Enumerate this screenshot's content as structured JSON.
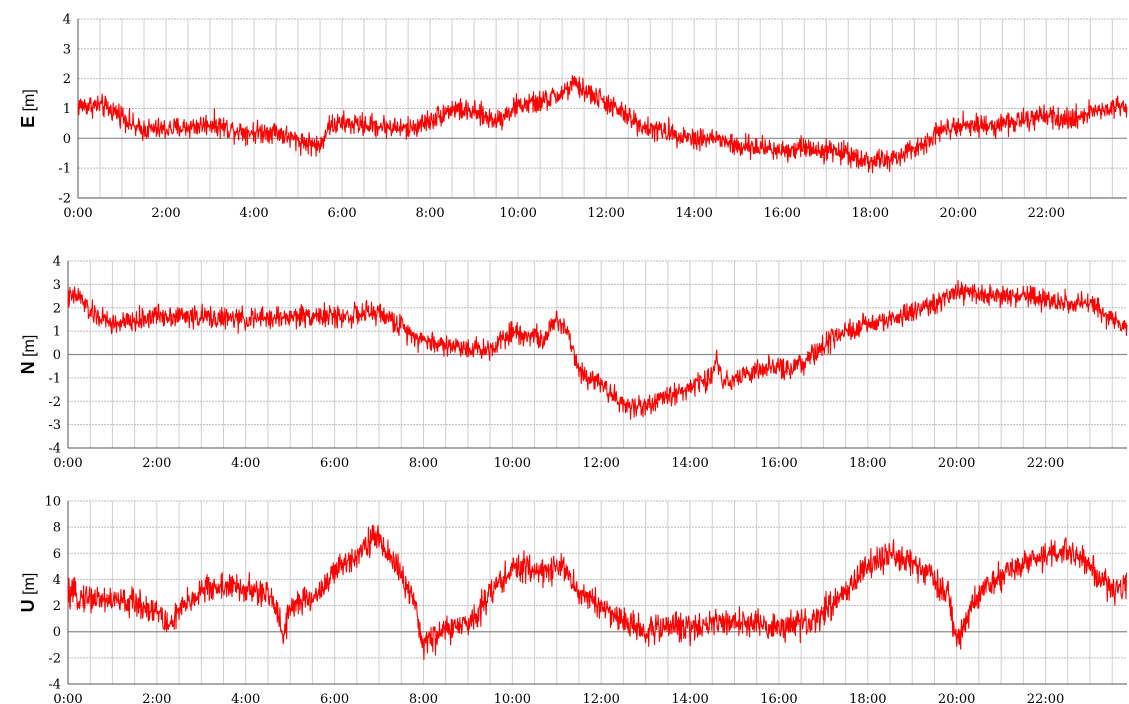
{
  "chart_data": [
    {
      "type": "line",
      "ylabel_main": "E",
      "ylabel_unit": "[m]",
      "xlim": [
        "0:00",
        "23:50"
      ],
      "ylim": [
        -2,
        4
      ],
      "x_ticks": [
        "0:00",
        "2:00",
        "4:00",
        "6:00",
        "8:00",
        "10:00",
        "12:00",
        "14:00",
        "16:00",
        "18:00",
        "20:00",
        "22:00"
      ],
      "y_ticks": [
        -2,
        -1,
        0,
        1,
        2,
        3,
        4
      ],
      "grid": true,
      "series": [
        {
          "color": "#ff0000",
          "noise": 0.55,
          "x": [
            "0:00",
            "0:30",
            "1:00",
            "1:20",
            "2:00",
            "2:40",
            "3:00",
            "3:30",
            "4:00",
            "4:30",
            "4:50",
            "5:20",
            "5:30",
            "5:40",
            "6:00",
            "7:00",
            "7:30",
            "8:00",
            "8:30",
            "9:00",
            "9:30",
            "10:00",
            "10:30",
            "11:00",
            "11:15",
            "11:30",
            "12:00",
            "12:30",
            "13:00",
            "13:30",
            "14:00",
            "14:30",
            "15:00",
            "15:30",
            "16:00",
            "16:30",
            "17:00",
            "17:30",
            "18:00",
            "18:30",
            "19:00",
            "19:30",
            "20:00",
            "20:30",
            "21:00",
            "21:30",
            "22:00",
            "22:30",
            "23:00",
            "23:50"
          ],
          "y": [
            1.1,
            1.1,
            0.8,
            0.3,
            0.3,
            0.4,
            0.5,
            0.3,
            0.2,
            0.25,
            0.0,
            -0.2,
            -0.3,
            0.4,
            0.5,
            0.4,
            0.3,
            0.6,
            1.0,
            0.85,
            0.6,
            1.1,
            1.2,
            1.5,
            1.8,
            1.6,
            1.2,
            0.7,
            0.3,
            0.2,
            0.0,
            0.0,
            -0.3,
            -0.3,
            -0.4,
            -0.3,
            -0.4,
            -0.5,
            -0.8,
            -0.7,
            -0.4,
            0.2,
            0.5,
            0.4,
            0.5,
            0.6,
            0.7,
            0.6,
            0.9,
            1.1
          ]
        }
      ]
    },
    {
      "type": "line",
      "ylabel_main": "N",
      "ylabel_unit": "[m]",
      "xlim": [
        "0:00",
        "23:50"
      ],
      "ylim": [
        -4,
        4
      ],
      "x_ticks": [
        "0:00",
        "2:00",
        "4:00",
        "6:00",
        "8:00",
        "10:00",
        "12:00",
        "14:00",
        "16:00",
        "18:00",
        "20:00",
        "22:00"
      ],
      "y_ticks": [
        -4,
        -3,
        -2,
        -1,
        0,
        1,
        2,
        3,
        4
      ],
      "grid": true,
      "series": [
        {
          "color": "#ff0000",
          "noise": 0.7,
          "x": [
            "0:00",
            "0:15",
            "0:30",
            "1:00",
            "1:30",
            "2:00",
            "3:00",
            "4:00",
            "5:00",
            "5:30",
            "6:00",
            "7:00",
            "7:30",
            "8:00",
            "8:30",
            "9:00",
            "9:30",
            "9:45",
            "10:00",
            "10:30",
            "10:45",
            "11:00",
            "11:15",
            "11:30",
            "12:00",
            "12:30",
            "13:00",
            "13:30",
            "14:00",
            "14:30",
            "14:36",
            "14:45",
            "15:00",
            "15:30",
            "16:00",
            "16:30",
            "17:00",
            "17:30",
            "18:00",
            "18:30",
            "19:00",
            "19:30",
            "20:00",
            "20:30",
            "21:00",
            "21:30",
            "22:00",
            "22:30",
            "23:00",
            "23:30",
            "23:50"
          ],
          "y": [
            2.4,
            2.5,
            1.8,
            1.3,
            1.4,
            1.7,
            1.6,
            1.5,
            1.6,
            1.7,
            1.6,
            1.8,
            1.2,
            0.6,
            0.4,
            0.3,
            0.2,
            0.7,
            1.0,
            0.8,
            0.6,
            1.6,
            1.0,
            -0.7,
            -1.2,
            -2.2,
            -2.2,
            -1.8,
            -1.4,
            -1.0,
            0.0,
            -1.2,
            -1.0,
            -0.7,
            -0.6,
            -0.5,
            0.4,
            0.9,
            1.3,
            1.5,
            1.8,
            2.2,
            2.6,
            2.6,
            2.5,
            2.5,
            2.3,
            2.2,
            2.1,
            1.5,
            1.3
          ]
        }
      ]
    },
    {
      "type": "line",
      "ylabel_main": "U",
      "ylabel_unit": "[m]",
      "xlim": [
        "0:00",
        "23:50"
      ],
      "ylim": [
        -4,
        10
      ],
      "x_ticks": [
        "0:00",
        "2:00",
        "4:00",
        "6:00",
        "8:00",
        "10:00",
        "12:00",
        "14:00",
        "16:00",
        "18:00",
        "20:00",
        "22:00"
      ],
      "y_ticks": [
        -4,
        -2,
        0,
        2,
        4,
        6,
        8,
        10
      ],
      "grid": true,
      "series": [
        {
          "color": "#ff0000",
          "noise": 1.6,
          "x": [
            "0:00",
            "0:30",
            "1:00",
            "1:30",
            "2:00",
            "2:15",
            "2:30",
            "3:00",
            "3:30",
            "4:00",
            "4:30",
            "4:45",
            "4:50",
            "5:00",
            "5:30",
            "6:00",
            "6:30",
            "6:50",
            "7:00",
            "7:30",
            "7:50",
            "8:00",
            "8:30",
            "9:00",
            "9:30",
            "10:00",
            "10:30",
            "10:50",
            "11:00",
            "11:30",
            "12:00",
            "12:30",
            "13:00",
            "13:30",
            "14:00",
            "14:30",
            "15:00",
            "15:30",
            "16:00",
            "16:30",
            "17:00",
            "17:30",
            "18:00",
            "18:30",
            "19:00",
            "19:30",
            "19:50",
            "20:00",
            "20:30",
            "21:00",
            "21:30",
            "22:00",
            "22:30",
            "23:00",
            "23:30",
            "23:50"
          ],
          "y": [
            2.8,
            2.6,
            2.4,
            2.2,
            1.6,
            0.4,
            1.5,
            3.2,
            3.5,
            3.2,
            2.8,
            1.5,
            -0.5,
            2.0,
            2.5,
            4.5,
            6.0,
            7.2,
            7.0,
            4.5,
            1.5,
            -1.0,
            0.2,
            0.5,
            3.0,
            4.8,
            4.8,
            4.5,
            5.5,
            3.0,
            2.0,
            0.8,
            0.0,
            0.5,
            0.3,
            0.8,
            0.7,
            0.6,
            0.3,
            0.5,
            1.5,
            3.2,
            5.0,
            5.8,
            5.2,
            4.0,
            2.5,
            -0.8,
            2.8,
            4.2,
            5.2,
            5.8,
            6.2,
            5.0,
            3.2,
            3.5
          ]
        }
      ]
    }
  ]
}
